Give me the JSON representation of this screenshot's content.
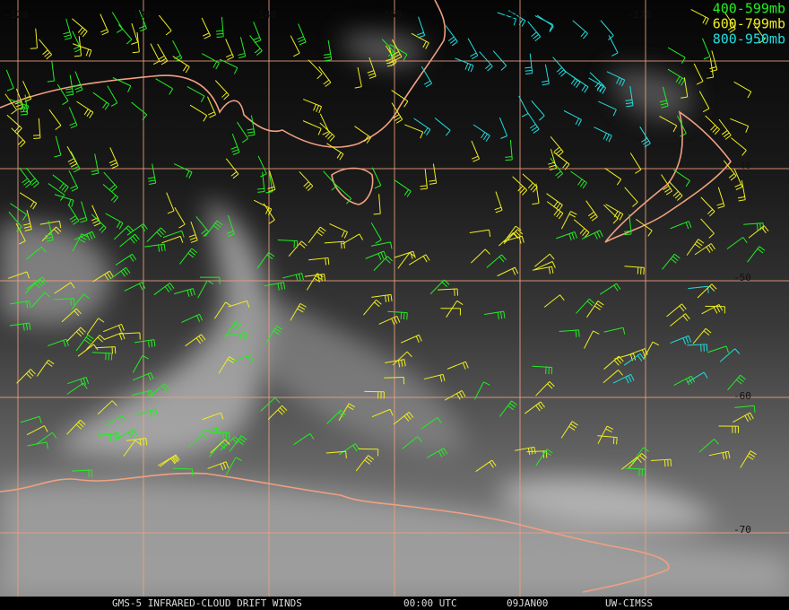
{
  "longitude_labels": [
    "-120",
    "-130",
    "-140",
    "-150",
    "-160",
    "-170"
  ],
  "latitude_labels": [
    "-40",
    "-50",
    "-60",
    "-70"
  ],
  "legend": [
    {
      "text": "400-599mb",
      "color": "#22ee22"
    },
    {
      "text": "600-799mb",
      "color": "#eeee22"
    },
    {
      "text": "800-950mb",
      "color": "#22dddd"
    }
  ],
  "footer": {
    "product": "GMS-5 INFRARED-CLOUD DRIFT WINDS",
    "time": "00:00 UTC",
    "date": "09JAN00",
    "source": "UW-CIMSS"
  }
}
